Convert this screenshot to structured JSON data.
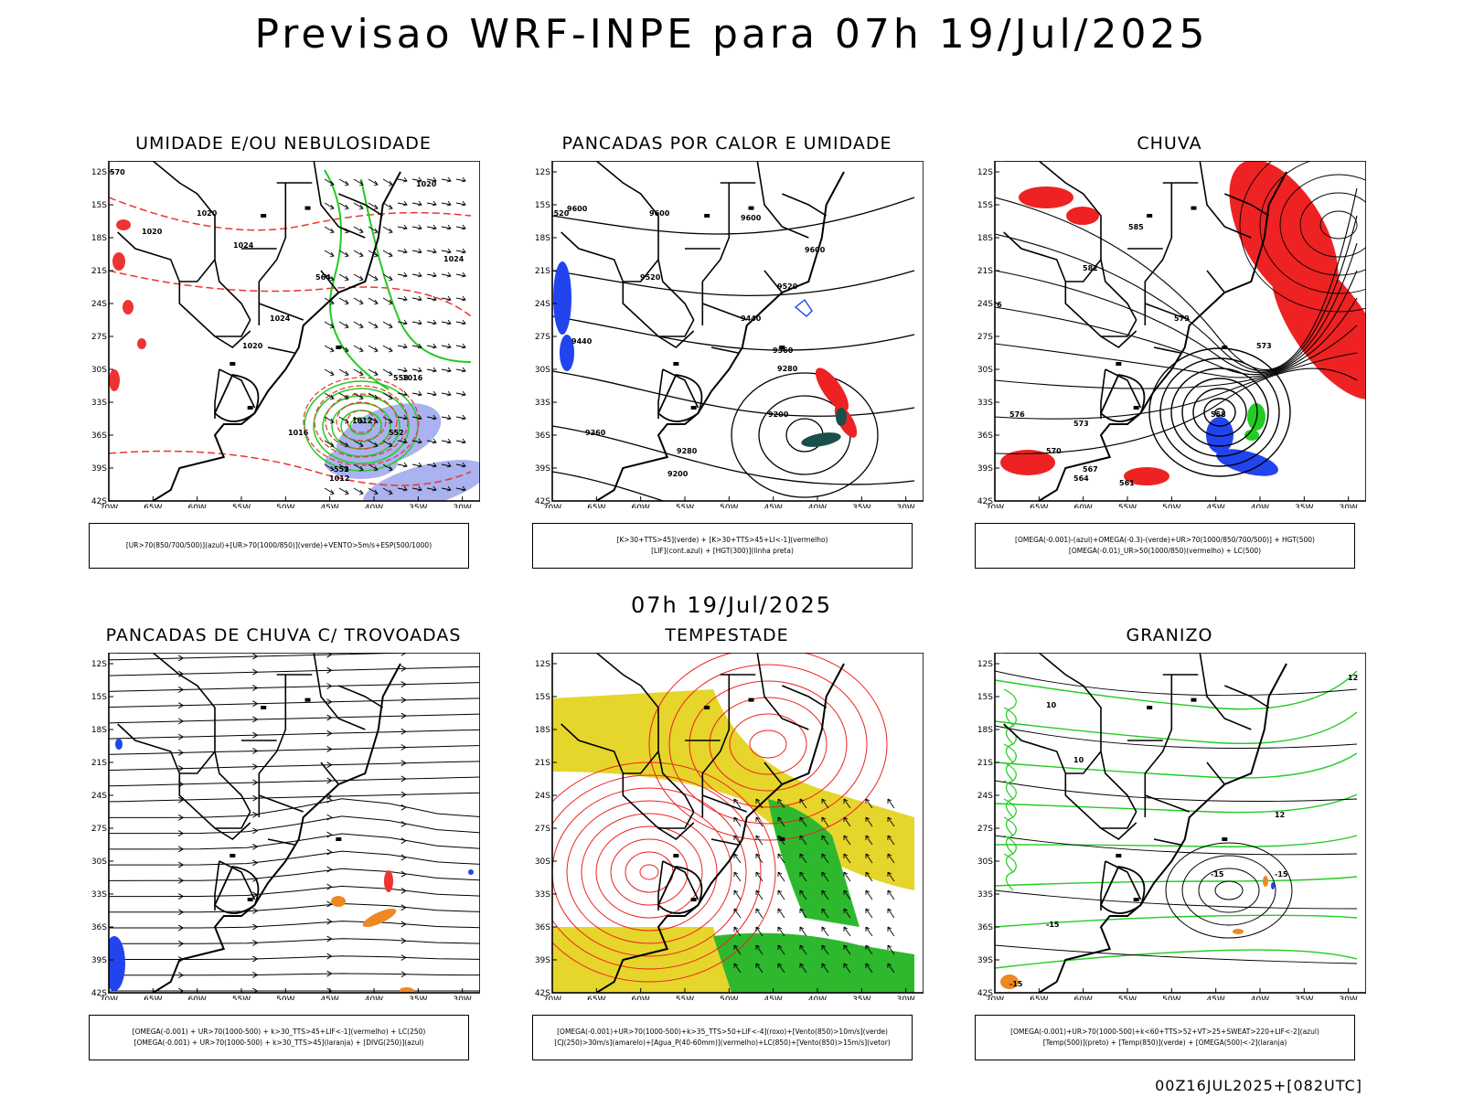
{
  "header": {
    "title": "Previsao WRF-INPE  para 07h 19/Jul/2025"
  },
  "middle": {
    "subtitle": "07h 19/Jul/2025"
  },
  "footer": {
    "run": "00Z16JUL2025+[082UTC]"
  },
  "axes": {
    "lat_labels": [
      "12S",
      "15S",
      "18S",
      "21S",
      "24S",
      "27S",
      "30S",
      "33S",
      "36S",
      "39S",
      "42S"
    ],
    "lon_labels": [
      "70W",
      "65W",
      "60W",
      "55W",
      "50W",
      "45W",
      "40W",
      "35W",
      "30W"
    ]
  },
  "colors": {
    "humidity_blue": "#aab2f0",
    "humidity_green": "#22cc22",
    "contour_red": "#ee3333",
    "rain_red": "#ee2222",
    "hail_orange": "#ee8822",
    "storm_yellow": "#e6d52a",
    "storm_green": "#2eb82e",
    "lif_blue": "#2244ee",
    "teal": "#1a4f4a"
  },
  "panels": [
    {
      "title": "UMIDADE E/OU NEBULOSIDADE",
      "legend": [
        "[UR>70(850/700/500)](azul)+[UR>70(1000/850)](verde)+VENTO>5m/s+ESP(500/1000)"
      ],
      "contour_labels": [
        "1020",
        "1020",
        "1024",
        "1024",
        "1020",
        "1016",
        "1012",
        "1012",
        "1016",
        "1020",
        "1024",
        "570",
        "564",
        "558",
        "552",
        "552"
      ]
    },
    {
      "title": "PANCADAS POR CALOR E UMIDADE",
      "legend": [
        "[K>30+TTS>45](verde) + [K>30+TTS>45+LI<-1](vermelho)",
        "[LIF](cont.azul) + [HGT(300)](linha preta)"
      ],
      "contour_labels": [
        "9520",
        "9600",
        "9600",
        "9600",
        "9600",
        "9520",
        "9520",
        "9440",
        "9440",
        "9360",
        "9280",
        "9200",
        "9280",
        "9360",
        "9200",
        "9280"
      ]
    },
    {
      "title": "CHUVA",
      "legend": [
        "[OMEGA(-0.001)-(azul)+OMEGA(-0.3)-(verde)+UR>70(1000/850/700/500)] + HGT(500)",
        "[OMEGA(-0.01)_UR>50(1000/850)(vermelho) + LC(500)"
      ],
      "contour_labels": [
        "585",
        "582",
        "579",
        "576",
        "573",
        "570",
        "567",
        "564",
        "561",
        "558",
        "576",
        "573"
      ]
    },
    {
      "title": "PANCADAS DE CHUVA C/ TROVOADAS",
      "legend": [
        "[OMEGA(-0.001) + UR>70(1000-500) + k>30_TTS>45+LIF<-1](vermelho) + LC(250)",
        "[OMEGA(-0.001) + UR>70(1000-500) + k>30_TTS>45](laranja) + [DIVG(250)](azul)"
      ],
      "contour_labels": []
    },
    {
      "title": "TEMPESTADE",
      "legend": [
        "[OMEGA(-0.001)+UR>70(1000-500)+k>35_TTS>50+LIF<-4](roxo)+[Vento(850)>10m/s](verde)",
        "[CJ(250)>30m/s](amarelo)+[Agua_P(40-60mm)](vermelho)+LC(850)+[Vento(850)>15m/s](vetor)"
      ],
      "contour_labels": []
    },
    {
      "title": "GRANIZO",
      "legend": [
        "[OMEGA(-0.001)+UR>70(1000-500)+k<60+TTS>52+VT>25+SWEAT>220+LIF<-2](azul)",
        "[Temp(500)](preto) + [Temp(850)](verde) + [OMEGA(500)<-2](laranja)"
      ],
      "contour_labels": [
        "-15",
        "-15",
        "-15",
        "-15",
        "12",
        "12",
        "10",
        "10"
      ]
    }
  ]
}
